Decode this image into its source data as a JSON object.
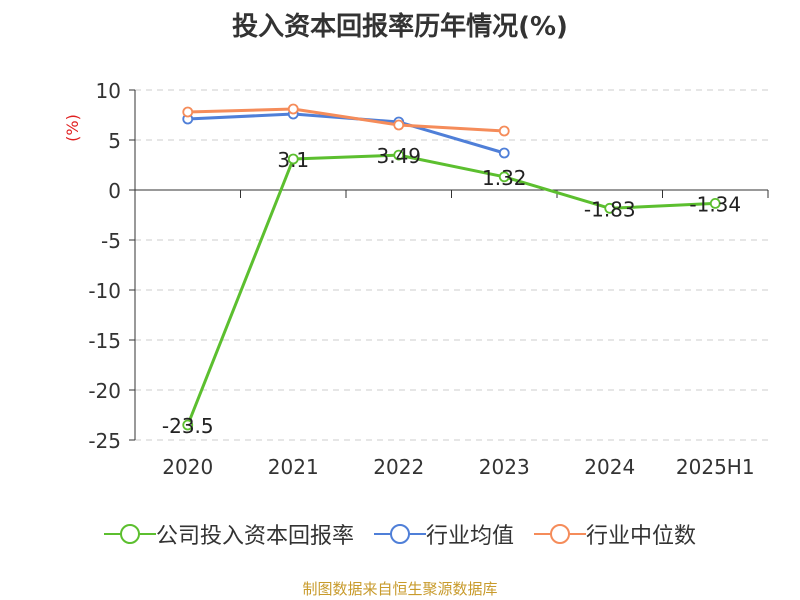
{
  "title": "投入资本回报率历年情况(%)",
  "source_note": "制图数据来自恒生聚源数据库",
  "colors": {
    "company": "#5cbf2f",
    "industry_avg": "#4f7fd8",
    "industry_median": "#f58c5a",
    "axis_unit": "#e02020",
    "source": "#c89b2c"
  },
  "chart_data": {
    "type": "line",
    "categories": [
      "2020",
      "2021",
      "2022",
      "2023",
      "2024",
      "2025H1"
    ],
    "ylabel": "(%)",
    "ylim": [
      -25,
      10
    ],
    "yticks": [
      10,
      5,
      0,
      -5,
      -10,
      -15,
      -20,
      -25
    ],
    "grid": true,
    "legend_position": "bottom",
    "series": [
      {
        "name": "公司投入资本回报率",
        "color": "#5cbf2f",
        "values": [
          -23.5,
          3.1,
          3.49,
          1.32,
          -1.83,
          -1.34
        ],
        "labels": [
          "-23.5",
          "3.1",
          "3.49",
          "1.32",
          "-1.83",
          "-1.34"
        ]
      },
      {
        "name": "行业均值",
        "color": "#4f7fd8",
        "values": [
          7.1,
          7.6,
          6.8,
          3.7,
          null,
          null
        ]
      },
      {
        "name": "行业中位数",
        "color": "#f58c5a",
        "values": [
          7.8,
          8.1,
          6.5,
          5.9,
          null,
          null
        ]
      }
    ]
  }
}
